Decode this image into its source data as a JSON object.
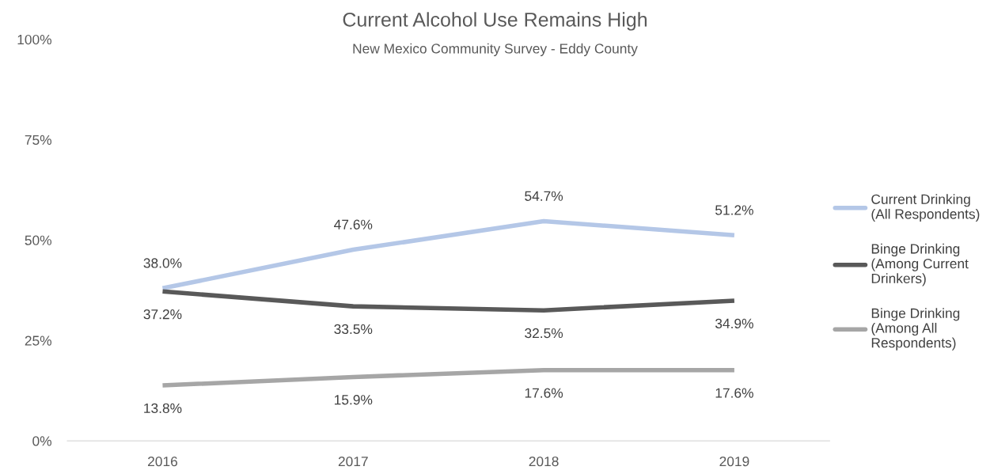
{
  "chart_data": {
    "type": "line",
    "title": "Current Alcohol Use Remains High",
    "subtitle": "New Mexico Community Survey - Eddy County",
    "categories": [
      "2016",
      "2017",
      "2018",
      "2019"
    ],
    "series": [
      {
        "name": "Current Drinking\n(All Respondents)",
        "color": "#b4c7e7",
        "values": [
          38.0,
          47.6,
          54.7,
          51.2
        ],
        "value_labels": [
          "38.0%",
          "47.6%",
          "54.7%",
          "51.2%"
        ]
      },
      {
        "name": "Binge Drinking\n(Among Current\nDrinkers)",
        "color": "#595959",
        "values": [
          37.2,
          33.5,
          32.5,
          34.9
        ],
        "value_labels": [
          "37.2%",
          "33.5%",
          "32.5%",
          "34.9%"
        ]
      },
      {
        "name": "Binge Drinking\n(Among All\nRespondents)",
        "color": "#a6a6a6",
        "values": [
          13.8,
          15.9,
          17.6,
          17.6
        ],
        "value_labels": [
          "13.8%",
          "15.9%",
          "17.6%",
          "17.6%"
        ]
      }
    ],
    "ylim": [
      0,
      100
    ],
    "yticks": [
      {
        "value": 0,
        "label": "0%"
      },
      {
        "value": 25,
        "label": "25%"
      },
      {
        "value": 50,
        "label": "50%"
      },
      {
        "value": 75,
        "label": "75%"
      },
      {
        "value": 100,
        "label": "100%"
      }
    ],
    "grid": false,
    "legend": "right",
    "marker": "none",
    "line_style": "solid"
  }
}
